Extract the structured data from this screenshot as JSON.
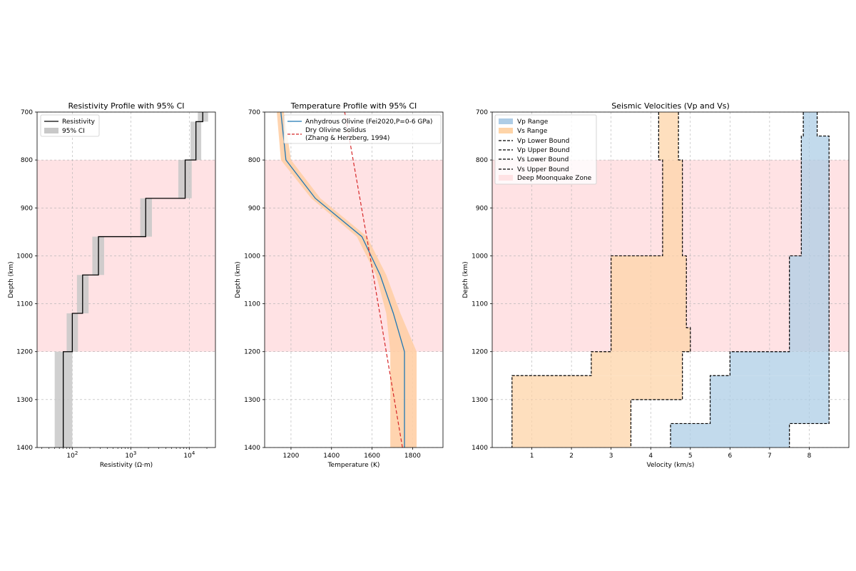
{
  "chart_data": [
    {
      "type": "line",
      "title": "Resistivity Profile with 95% CI",
      "xlabel": "Resistivity (Ω·m)",
      "ylabel": "Depth (km)",
      "x_scale": "log",
      "xlim": [
        25,
        28000
      ],
      "ylim": [
        1400,
        700
      ],
      "x_ticks": [
        {
          "value": 100,
          "base": "10",
          "exp": "2"
        },
        {
          "value": 1000,
          "base": "10",
          "exp": "3"
        },
        {
          "value": 10000,
          "base": "10",
          "exp": "4"
        }
      ],
      "y_ticks": [
        700,
        800,
        900,
        1000,
        1100,
        1200,
        1300,
        1400
      ],
      "grid": true,
      "legend": "top-left",
      "shaded_zone": {
        "depth": [
          800,
          1200
        ],
        "color": "#ffe2e4"
      },
      "series": [
        {
          "name": "Resistivity",
          "kind": "step",
          "color": "#000000",
          "steps": [
            {
              "depth": [
                700,
                720
              ],
              "value": 17000
            },
            {
              "depth": [
                720,
                800
              ],
              "value": 13000
            },
            {
              "depth": [
                800,
                880
              ],
              "value": 8500
            },
            {
              "depth": [
                880,
                960
              ],
              "value": 1800
            },
            {
              "depth": [
                960,
                1040
              ],
              "value": 280
            },
            {
              "depth": [
                1040,
                1120
              ],
              "value": 150
            },
            {
              "depth": [
                1120,
                1200
              ],
              "value": 100
            },
            {
              "depth": [
                1200,
                1400
              ],
              "value": 70
            }
          ]
        },
        {
          "name": "95% CI",
          "kind": "band",
          "color": "#c8c8c8",
          "steps": [
            {
              "depth": [
                700,
                720
              ],
              "low": 14000,
              "high": 21000
            },
            {
              "depth": [
                720,
                800
              ],
              "low": 10500,
              "high": 16000
            },
            {
              "depth": [
                800,
                880
              ],
              "low": 6500,
              "high": 11000
            },
            {
              "depth": [
                880,
                960
              ],
              "low": 1450,
              "high": 2300
            },
            {
              "depth": [
                960,
                1040
              ],
              "low": 220,
              "high": 350
            },
            {
              "depth": [
                1040,
                1120
              ],
              "low": 120,
              "high": 190
            },
            {
              "depth": [
                1120,
                1200
              ],
              "low": 80,
              "high": 125
            },
            {
              "depth": [
                1200,
                1400
              ],
              "low": 50,
              "high": 100
            }
          ]
        }
      ]
    },
    {
      "type": "line",
      "title": "Temperature Profile with 95% CI",
      "xlabel": "Temperature (K)",
      "ylabel": "Depth (km)",
      "xlim": [
        1070,
        1950
      ],
      "ylim": [
        1400,
        700
      ],
      "x_ticks": [
        1200,
        1400,
        1600,
        1800
      ],
      "y_ticks": [
        700,
        800,
        900,
        1000,
        1100,
        1200,
        1300,
        1400
      ],
      "grid": true,
      "legend": "top-right",
      "shaded_zone": {
        "depth": [
          800,
          1200
        ],
        "color": "#ffe2e4"
      },
      "series": [
        {
          "name": "Anhydrous Olivine (Fei2020,P=0-6 GPa)",
          "kind": "line",
          "color": "#1f77b4",
          "points": [
            {
              "depth": 700,
              "t": 1150
            },
            {
              "depth": 800,
              "t": 1175
            },
            {
              "depth": 880,
              "t": 1320
            },
            {
              "depth": 960,
              "t": 1550
            },
            {
              "depth": 1040,
              "t": 1640
            },
            {
              "depth": 1120,
              "t": 1705
            },
            {
              "depth": 1200,
              "t": 1760
            },
            {
              "depth": 1400,
              "t": 1760
            }
          ]
        },
        {
          "name": "95% CI",
          "kind": "band",
          "color": "#ffcfa6",
          "points": [
            {
              "depth": 700,
              "low": 1130,
              "high": 1165
            },
            {
              "depth": 800,
              "low": 1150,
              "high": 1200
            },
            {
              "depth": 880,
              "low": 1300,
              "high": 1345
            },
            {
              "depth": 960,
              "low": 1525,
              "high": 1575
            },
            {
              "depth": 1040,
              "low": 1620,
              "high": 1670
            },
            {
              "depth": 1120,
              "low": 1670,
              "high": 1740
            },
            {
              "depth": 1200,
              "low": 1690,
              "high": 1820
            },
            {
              "depth": 1400,
              "low": 1690,
              "high": 1820
            }
          ]
        },
        {
          "name": "Dry Olivine Solidus",
          "name2": "(Zhang & Herzberg, 1994)",
          "kind": "dashed",
          "color": "#d62728",
          "points": [
            {
              "depth": 700,
              "t": 1465
            },
            {
              "depth": 1000,
              "t": 1590
            },
            {
              "depth": 1400,
              "t": 1750
            }
          ]
        }
      ]
    },
    {
      "type": "area",
      "title": "Seismic Velocities (Vp and Vs)",
      "xlabel": "Velocity (km/s)",
      "ylabel": "Depth (km)",
      "xlim": [
        0,
        9
      ],
      "ylim": [
        1400,
        700
      ],
      "x_ticks": [
        1,
        2,
        3,
        4,
        5,
        6,
        7,
        8
      ],
      "y_ticks": [
        700,
        800,
        900,
        1000,
        1100,
        1200,
        1300,
        1400
      ],
      "grid": true,
      "legend": "top-left",
      "series": [
        {
          "name": "Vp Range",
          "color": "#aecde6",
          "steps": [
            {
              "depth": [
                700,
                750
              ],
              "low": 7.85,
              "high": 8.2
            },
            {
              "depth": [
                750,
                1000
              ],
              "low": 7.8,
              "high": 8.5
            },
            {
              "depth": [
                1000,
                1200
              ],
              "low": 7.5,
              "high": 8.5
            },
            {
              "depth": [
                1200,
                1250
              ],
              "low": 6.0,
              "high": 8.5
            },
            {
              "depth": [
                1250,
                1350
              ],
              "low": 5.5,
              "high": 8.5
            },
            {
              "depth": [
                1350,
                1400
              ],
              "low": 4.5,
              "high": 7.5
            }
          ]
        },
        {
          "name": "Vs Range",
          "color": "#fed4a8",
          "steps": [
            {
              "depth": [
                700,
                800
              ],
              "low": 4.2,
              "high": 4.7
            },
            {
              "depth": [
                800,
                1000
              ],
              "low": 4.3,
              "high": 4.8
            },
            {
              "depth": [
                1000,
                1150
              ],
              "low": 3.0,
              "high": 4.9
            },
            {
              "depth": [
                1150,
                1200
              ],
              "low": 3.0,
              "high": 5.0
            },
            {
              "depth": [
                1200,
                1250
              ],
              "low": 2.5,
              "high": 4.8
            },
            {
              "depth": [
                1250,
                1300
              ],
              "low": 0.5,
              "high": 4.8
            },
            {
              "depth": [
                1300,
                1400
              ],
              "low": 0.5,
              "high": 3.5
            }
          ]
        },
        {
          "name": "Vp Lower Bound",
          "color": "#000000",
          "kind": "dashed"
        },
        {
          "name": "Vp Upper Bound",
          "color": "#000000",
          "kind": "dashed"
        },
        {
          "name": "Vs Lower Bound",
          "color": "#000000",
          "kind": "dashed"
        },
        {
          "name": "Vs Upper Bound",
          "color": "#000000",
          "kind": "dashed"
        },
        {
          "name": "Deep Moonquake Zone",
          "color": "#ffe2e4",
          "depth": [
            800,
            1200
          ]
        }
      ]
    }
  ]
}
